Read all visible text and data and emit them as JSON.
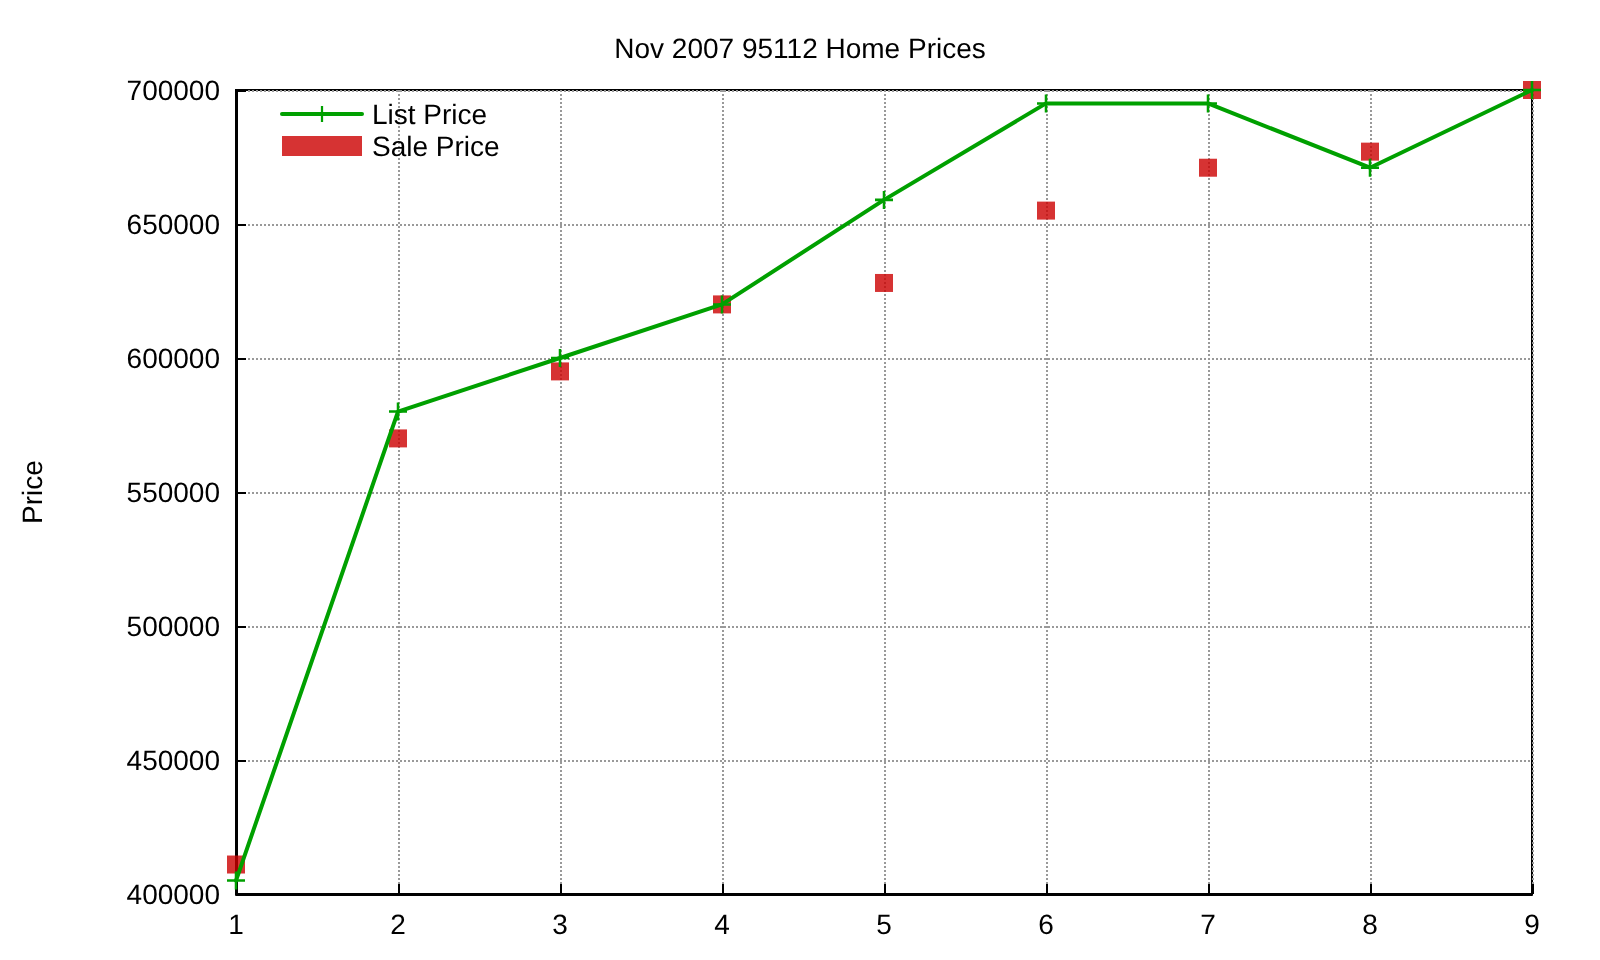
{
  "chart_data": {
    "type": "line",
    "title": "Nov 2007 95112 Home Prices",
    "ylabel": "Price",
    "x": [
      1,
      2,
      3,
      4,
      5,
      6,
      7,
      8,
      9
    ],
    "series": [
      {
        "name": "List Price",
        "color": "#00a000",
        "marker": "cross",
        "line_style": "solid",
        "values": [
          405000,
          580000,
          600000,
          620000,
          659000,
          695000,
          695000,
          671000,
          700000
        ]
      },
      {
        "name": "Sale Price",
        "type": "scatter",
        "color": "#cc0000",
        "marker": "square",
        "values": [
          411000,
          570000,
          595000,
          620000,
          628000,
          655000,
          671000,
          677000,
          700000
        ]
      }
    ],
    "xlim": [
      1,
      9
    ],
    "xticks": [
      1,
      2,
      3,
      4,
      5,
      6,
      7,
      8,
      9
    ],
    "ylim": [
      400000,
      700000
    ],
    "yticks": [
      400000,
      450000,
      500000,
      550000,
      600000,
      650000,
      700000
    ],
    "grid": true,
    "legend": "top left"
  }
}
